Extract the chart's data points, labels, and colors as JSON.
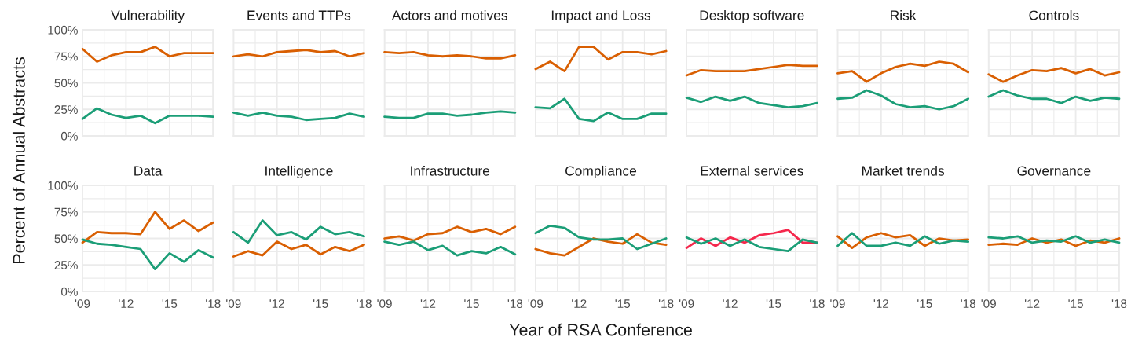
{
  "chart_data": [
    {
      "type": "line",
      "title": "Vulnerability",
      "ylabel": "Percent of Annual Abstracts",
      "x": [
        2009,
        2010,
        2011,
        2012,
        2013,
        2014,
        2015,
        2016,
        2017,
        2018
      ],
      "xlim": [
        2009,
        2018
      ],
      "xticks": [
        2009,
        2012,
        2015,
        2018
      ],
      "ylim": [
        0,
        100
      ],
      "yticks": [
        {
          "value": 0,
          "label": "0%"
        },
        {
          "value": 25,
          "label": "25%"
        },
        {
          "value": 50,
          "label": "50%"
        },
        {
          "value": 75,
          "label": "75%"
        },
        {
          "value": 100,
          "label": "100%"
        }
      ],
      "grid": true,
      "tick_labels": "y",
      "series": [
        {
          "color": "#d95f02",
          "values": [
            82,
            70,
            76,
            79,
            79,
            84,
            75,
            78,
            78,
            78
          ]
        },
        {
          "color": "#1b9e77",
          "values": [
            16,
            26,
            20,
            17,
            19,
            12,
            19,
            19,
            19,
            18
          ]
        }
      ]
    },
    {
      "type": "line",
      "title": "Events and TTPs",
      "x": [
        2009,
        2010,
        2011,
        2012,
        2013,
        2014,
        2015,
        2016,
        2017,
        2018
      ],
      "xlim": [
        2009,
        2018
      ],
      "xticks": [
        2009,
        2012,
        2015,
        2018
      ],
      "ylim": [
        0,
        100
      ],
      "yticks": [
        0,
        25,
        50,
        75,
        100
      ],
      "grid": true,
      "tick_labels": false,
      "series": [
        {
          "color": "#d95f02",
          "values": [
            75,
            77,
            75,
            79,
            80,
            81,
            79,
            80,
            75,
            78
          ]
        },
        {
          "color": "#1b9e77",
          "values": [
            22,
            19,
            22,
            19,
            18,
            15,
            16,
            17,
            21,
            18
          ]
        }
      ]
    },
    {
      "type": "line",
      "title": "Actors and motives",
      "x": [
        2009,
        2010,
        2011,
        2012,
        2013,
        2014,
        2015,
        2016,
        2017,
        2018
      ],
      "xlim": [
        2009,
        2018
      ],
      "xticks": [
        2009,
        2012,
        2015,
        2018
      ],
      "ylim": [
        0,
        100
      ],
      "yticks": [
        0,
        25,
        50,
        75,
        100
      ],
      "grid": true,
      "tick_labels": false,
      "series": [
        {
          "color": "#d95f02",
          "values": [
            79,
            78,
            79,
            76,
            75,
            76,
            75,
            73,
            73,
            76
          ]
        },
        {
          "color": "#1b9e77",
          "values": [
            18,
            17,
            17,
            21,
            21,
            19,
            20,
            22,
            23,
            22
          ]
        }
      ]
    },
    {
      "type": "line",
      "title": "Impact and Loss",
      "x": [
        2009,
        2010,
        2011,
        2012,
        2013,
        2014,
        2015,
        2016,
        2017,
        2018
      ],
      "xlim": [
        2009,
        2018
      ],
      "xticks": [
        2009,
        2012,
        2015,
        2018
      ],
      "ylim": [
        0,
        100
      ],
      "yticks": [
        0,
        25,
        50,
        75,
        100
      ],
      "grid": true,
      "tick_labels": false,
      "series": [
        {
          "color": "#d95f02",
          "values": [
            63,
            70,
            61,
            84,
            84,
            72,
            79,
            79,
            77,
            80
          ]
        },
        {
          "color": "#1b9e77",
          "values": [
            27,
            26,
            35,
            16,
            14,
            22,
            16,
            16,
            21,
            21
          ]
        }
      ]
    },
    {
      "type": "line",
      "title": "Desktop software",
      "x": [
        2009,
        2010,
        2011,
        2012,
        2013,
        2014,
        2015,
        2016,
        2017,
        2018
      ],
      "xlim": [
        2009,
        2018
      ],
      "xticks": [
        2009,
        2012,
        2015,
        2018
      ],
      "ylim": [
        0,
        100
      ],
      "yticks": [
        0,
        25,
        50,
        75,
        100
      ],
      "grid": true,
      "tick_labels": false,
      "series": [
        {
          "color": "#d95f02",
          "values": [
            57,
            62,
            61,
            61,
            61,
            63,
            65,
            67,
            66,
            66
          ]
        },
        {
          "color": "#1b9e77",
          "values": [
            36,
            32,
            37,
            33,
            37,
            31,
            29,
            27,
            28,
            31
          ]
        }
      ]
    },
    {
      "type": "line",
      "title": "Risk",
      "x": [
        2009,
        2010,
        2011,
        2012,
        2013,
        2014,
        2015,
        2016,
        2017,
        2018
      ],
      "xlim": [
        2009,
        2018
      ],
      "xticks": [
        2009,
        2012,
        2015,
        2018
      ],
      "ylim": [
        0,
        100
      ],
      "yticks": [
        0,
        25,
        50,
        75,
        100
      ],
      "grid": true,
      "tick_labels": false,
      "series": [
        {
          "color": "#d95f02",
          "values": [
            59,
            61,
            51,
            59,
            65,
            68,
            66,
            70,
            68,
            60
          ]
        },
        {
          "color": "#1b9e77",
          "values": [
            35,
            36,
            43,
            38,
            30,
            27,
            28,
            25,
            28,
            35
          ]
        }
      ]
    },
    {
      "type": "line",
      "title": "Controls",
      "x": [
        2009,
        2010,
        2011,
        2012,
        2013,
        2014,
        2015,
        2016,
        2017,
        2018
      ],
      "xlim": [
        2009,
        2018
      ],
      "xticks": [
        2009,
        2012,
        2015,
        2018
      ],
      "ylim": [
        0,
        100
      ],
      "yticks": [
        0,
        25,
        50,
        75,
        100
      ],
      "grid": true,
      "tick_labels": false,
      "series": [
        {
          "color": "#d95f02",
          "values": [
            58,
            51,
            57,
            62,
            61,
            64,
            59,
            63,
            57,
            60
          ]
        },
        {
          "color": "#1b9e77",
          "values": [
            37,
            43,
            38,
            35,
            35,
            31,
            37,
            33,
            36,
            35
          ]
        }
      ]
    },
    {
      "type": "line",
      "title": "Data",
      "x": [
        2009,
        2010,
        2011,
        2012,
        2013,
        2014,
        2015,
        2016,
        2017,
        2018
      ],
      "xlim": [
        2009,
        2018
      ],
      "xticks": [
        {
          "value": 2009,
          "label": "'09"
        },
        {
          "value": 2012,
          "label": "'12"
        },
        {
          "value": 2015,
          "label": "'15"
        },
        {
          "value": 2018,
          "label": "'18"
        }
      ],
      "ylim": [
        0,
        100
      ],
      "yticks": [
        {
          "value": 0,
          "label": "0%"
        },
        {
          "value": 25,
          "label": "25%"
        },
        {
          "value": 50,
          "label": "50%"
        },
        {
          "value": 75,
          "label": "75%"
        },
        {
          "value": 100,
          "label": "100%"
        }
      ],
      "grid": true,
      "series": [
        {
          "color": "#d95f02",
          "values": [
            46,
            56,
            55,
            55,
            54,
            75,
            59,
            67,
            57,
            65
          ]
        },
        {
          "color": "#1b9e77",
          "values": [
            49,
            45,
            44,
            42,
            40,
            21,
            36,
            28,
            39,
            32
          ]
        }
      ]
    },
    {
      "type": "line",
      "title": "Intelligence",
      "x": [
        2009,
        2010,
        2011,
        2012,
        2013,
        2014,
        2015,
        2016,
        2017,
        2018
      ],
      "xlim": [
        2009,
        2018
      ],
      "xticks": [
        {
          "value": 2009,
          "label": "'09"
        },
        {
          "value": 2012,
          "label": "'12"
        },
        {
          "value": 2015,
          "label": "'15"
        },
        {
          "value": 2018,
          "label": "'18"
        }
      ],
      "ylim": [
        0,
        100
      ],
      "yticks": [
        0,
        25,
        50,
        75,
        100
      ],
      "grid": true,
      "tick_labels": "x",
      "series": [
        {
          "color": "#d95f02",
          "values": [
            33,
            38,
            34,
            47,
            40,
            44,
            35,
            42,
            38,
            44
          ]
        },
        {
          "color": "#1b9e77",
          "values": [
            56,
            46,
            67,
            53,
            56,
            49,
            61,
            54,
            56,
            52
          ]
        }
      ]
    },
    {
      "type": "line",
      "title": "Infrastructure",
      "x": [
        2009,
        2010,
        2011,
        2012,
        2013,
        2014,
        2015,
        2016,
        2017,
        2018
      ],
      "xlim": [
        2009,
        2018
      ],
      "xticks": [
        {
          "value": 2009,
          "label": "'09"
        },
        {
          "value": 2012,
          "label": "'12"
        },
        {
          "value": 2015,
          "label": "'15"
        },
        {
          "value": 2018,
          "label": "'18"
        }
      ],
      "ylim": [
        0,
        100
      ],
      "yticks": [
        0,
        25,
        50,
        75,
        100
      ],
      "grid": true,
      "tick_labels": "x",
      "series": [
        {
          "color": "#d95f02",
          "values": [
            50,
            52,
            48,
            54,
            55,
            61,
            56,
            59,
            54,
            61
          ]
        },
        {
          "color": "#1b9e77",
          "values": [
            47,
            44,
            47,
            39,
            43,
            34,
            38,
            36,
            42,
            35
          ]
        }
      ]
    },
    {
      "type": "line",
      "title": "Compliance",
      "xlabel": "Year of RSA Conference",
      "x": [
        2009,
        2010,
        2011,
        2012,
        2013,
        2014,
        2015,
        2016,
        2017,
        2018
      ],
      "xlim": [
        2009,
        2018
      ],
      "xticks": [
        {
          "value": 2009,
          "label": "'09"
        },
        {
          "value": 2012,
          "label": "'12"
        },
        {
          "value": 2015,
          "label": "'15"
        },
        {
          "value": 2018,
          "label": "'18"
        }
      ],
      "ylim": [
        0,
        100
      ],
      "yticks": [
        0,
        25,
        50,
        75,
        100
      ],
      "grid": true,
      "tick_labels": "x",
      "series": [
        {
          "color": "#d95f02",
          "values": [
            40,
            36,
            34,
            42,
            50,
            47,
            45,
            54,
            46,
            44
          ]
        },
        {
          "color": "#1b9e77",
          "values": [
            55,
            62,
            60,
            51,
            49,
            49,
            50,
            40,
            45,
            50
          ]
        }
      ]
    },
    {
      "type": "line",
      "title": "External services",
      "x": [
        2009,
        2010,
        2011,
        2012,
        2013,
        2014,
        2015,
        2016,
        2017,
        2018
      ],
      "xlim": [
        2009,
        2018
      ],
      "xticks": [
        {
          "value": 2009,
          "label": "'09"
        },
        {
          "value": 2012,
          "label": "'12"
        },
        {
          "value": 2015,
          "label": "'15"
        },
        {
          "value": 2018,
          "label": "'18"
        }
      ],
      "ylim": [
        0,
        100
      ],
      "yticks": [
        0,
        25,
        50,
        75,
        100
      ],
      "grid": true,
      "tick_labels": "x",
      "series": [
        {
          "color": "#f5274c",
          "values": [
            41,
            50,
            43,
            51,
            46,
            53,
            55,
            58,
            46,
            46
          ]
        },
        {
          "color": "#1b9e77",
          "values": [
            51,
            45,
            50,
            43,
            49,
            42,
            40,
            38,
            49,
            46
          ]
        }
      ]
    },
    {
      "type": "line",
      "title": "Market trends",
      "x": [
        2009,
        2010,
        2011,
        2012,
        2013,
        2014,
        2015,
        2016,
        2017,
        2018
      ],
      "xlim": [
        2009,
        2018
      ],
      "xticks": [
        {
          "value": 2009,
          "label": "'09"
        },
        {
          "value": 2012,
          "label": "'12"
        },
        {
          "value": 2015,
          "label": "'15"
        },
        {
          "value": 2018,
          "label": "'18"
        }
      ],
      "ylim": [
        0,
        100
      ],
      "yticks": [
        0,
        25,
        50,
        75,
        100
      ],
      "grid": true,
      "tick_labels": "x",
      "series": [
        {
          "color": "#d95f02",
          "values": [
            52,
            41,
            51,
            55,
            51,
            53,
            43,
            50,
            48,
            49
          ]
        },
        {
          "color": "#1b9e77",
          "values": [
            43,
            55,
            43,
            43,
            46,
            43,
            52,
            45,
            48,
            47
          ]
        }
      ]
    },
    {
      "type": "line",
      "title": "Governance",
      "x": [
        2009,
        2010,
        2011,
        2012,
        2013,
        2014,
        2015,
        2016,
        2017,
        2018
      ],
      "xlim": [
        2009,
        2018
      ],
      "xticks": [
        {
          "value": 2009,
          "label": "'09"
        },
        {
          "value": 2012,
          "label": "'12"
        },
        {
          "value": 2015,
          "label": "'15"
        },
        {
          "value": 2018,
          "label": "'18"
        }
      ],
      "ylim": [
        0,
        100
      ],
      "yticks": [
        0,
        25,
        50,
        75,
        100
      ],
      "grid": true,
      "tick_labels": "x",
      "series": [
        {
          "color": "#d95f02",
          "values": [
            44,
            45,
            44,
            50,
            46,
            49,
            43,
            48,
            46,
            50
          ]
        },
        {
          "color": "#1b9e77",
          "values": [
            51,
            50,
            52,
            46,
            48,
            47,
            52,
            46,
            49,
            46
          ]
        }
      ]
    }
  ]
}
